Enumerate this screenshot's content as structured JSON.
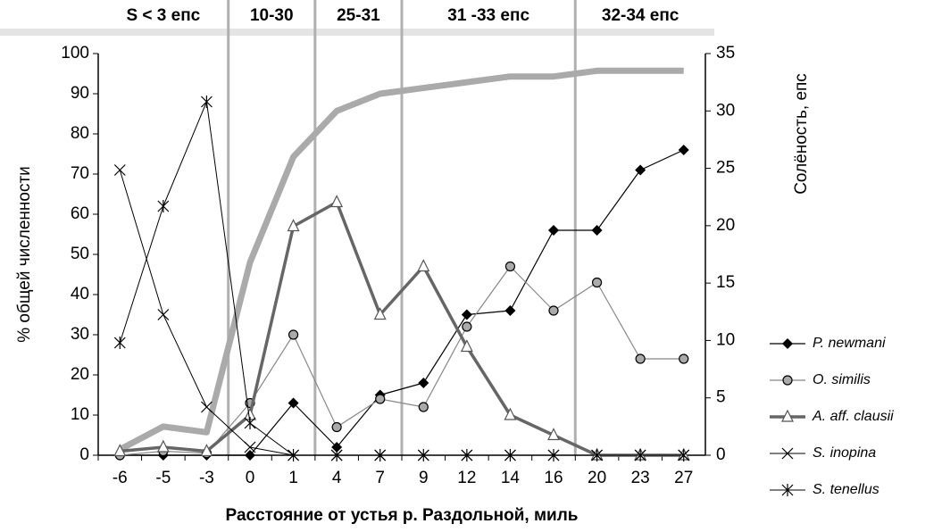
{
  "chart_data": {
    "type": "line",
    "x_label": "Расстояние от устья р. Раздольной, миль",
    "y_label": "% общей численности",
    "y2_label": "Солёность, епс",
    "zones": [
      "S < 3 епс",
      "10-30",
      "25-31",
      "31 -33 епс",
      "32-34 епс"
    ],
    "categories": [
      "-6",
      "-5",
      "-3",
      "0",
      "1",
      "4",
      "7",
      "9",
      "12",
      "14",
      "16",
      "20",
      "23",
      "27"
    ],
    "ylim": [
      0,
      100
    ],
    "yticks": [
      0,
      10,
      20,
      30,
      40,
      50,
      60,
      70,
      80,
      90,
      100
    ],
    "y2lim": [
      0,
      35
    ],
    "y2ticks": [
      0,
      5,
      10,
      15,
      20,
      25,
      30,
      35
    ],
    "series": [
      {
        "name": "P. newmani",
        "color": "#000000",
        "marker": "diamond",
        "values": [
          0,
          0,
          0,
          0,
          13,
          2,
          15,
          18,
          35,
          36,
          56,
          56,
          71,
          76
        ]
      },
      {
        "name": "O. similis",
        "color": "#888888",
        "marker": "circle",
        "values": [
          0,
          1,
          0.5,
          13,
          30,
          7,
          14,
          12,
          32,
          47,
          36,
          43,
          24,
          24
        ]
      },
      {
        "name": "A. aff. clausii",
        "color": "#666666",
        "marker": "triangle",
        "values": [
          1,
          2,
          1,
          10,
          57,
          63,
          35,
          47,
          27,
          10,
          5,
          0,
          0,
          0
        ]
      },
      {
        "name": "S. inopina",
        "color": "#000000",
        "marker": "x",
        "values": [
          71,
          35,
          12,
          2,
          0,
          0,
          0,
          0,
          0,
          0,
          0,
          0,
          0,
          0
        ]
      },
      {
        "name": "S. tenellus",
        "color": "#000000",
        "marker": "star",
        "values": [
          28,
          62,
          88,
          8,
          0,
          0,
          0,
          0,
          0,
          0,
          0,
          0,
          0,
          0
        ]
      },
      {
        "axis": "y2",
        "color": "#aaaaaa",
        "marker": "none",
        "values": [
          0.5,
          2.5,
          2,
          16.8,
          26,
          30,
          31.5,
          32,
          32.5,
          33,
          33,
          33.5,
          33.5,
          33.5
        ]
      }
    ]
  }
}
